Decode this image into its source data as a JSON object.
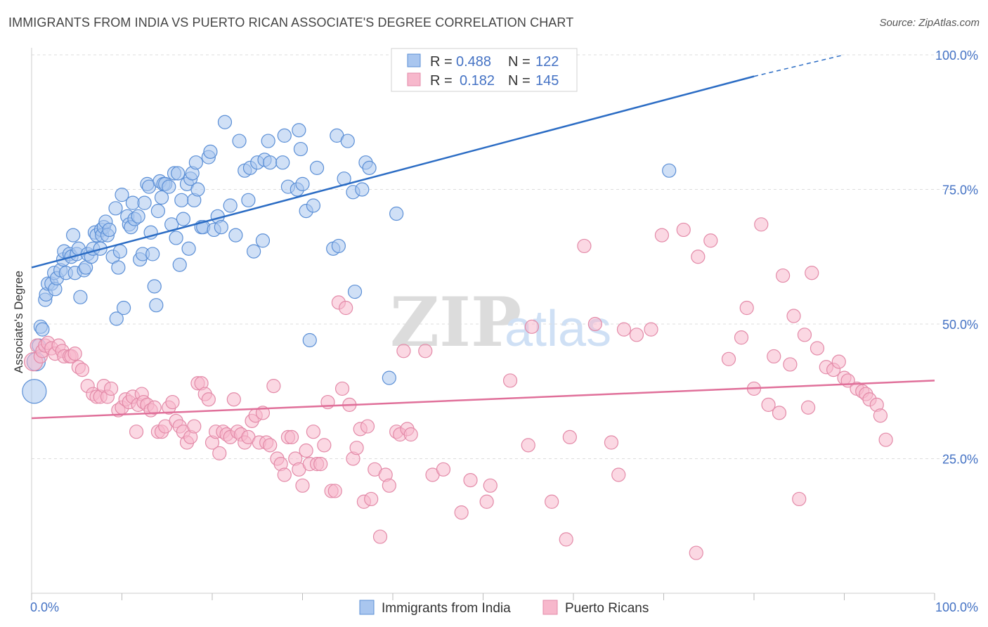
{
  "header": {
    "title": "IMMIGRANTS FROM INDIA VS PUERTO RICAN ASSOCIATE'S DEGREE CORRELATION CHART",
    "source": "Source: ZipAtlas.com"
  },
  "watermark": {
    "zip": "ZIP",
    "atlas": "atlas"
  },
  "colors": {
    "blue_fill": "#a9c6ef",
    "blue_stroke": "#5b8fd6",
    "blue_line": "#2b6cc4",
    "pink_fill": "#f7b8cc",
    "pink_stroke": "#e38aa8",
    "pink_line": "#e0709a",
    "grid": "#dddddd",
    "axis_text": "#4472c4"
  },
  "legend": {
    "rows": [
      {
        "r_label": "R =",
        "r_value": "0.488",
        "n_label": "N =",
        "n_value": "122"
      },
      {
        "r_label": "R =",
        "r_value": "0.182",
        "n_label": "N =",
        "n_value": "145"
      }
    ]
  },
  "bottom_legend": [
    "Immigrants from India",
    "Puerto Ricans"
  ],
  "chart_data": {
    "type": "scatter",
    "title": "IMMIGRANTS FROM INDIA VS PUERTO RICAN ASSOCIATE'S DEGREE CORRELATION CHART",
    "xlabel": "",
    "ylabel": "Associate's Degree",
    "xlim": [
      0,
      100
    ],
    "ylim": [
      0,
      100
    ],
    "x_tick_labels": [
      "0.0%",
      "100.0%"
    ],
    "y_ticks": [
      25,
      50,
      75,
      100
    ],
    "y_tick_labels": [
      "25.0%",
      "50.0%",
      "75.0%",
      "100.0%"
    ],
    "grid": true,
    "series": [
      {
        "name": "Immigrants from India",
        "R": 0.488,
        "N": 122,
        "trend": {
          "x": [
            0,
            80
          ],
          "y": [
            60.5,
            96
          ],
          "dashed_to": [
            90,
            100
          ]
        },
        "points": [
          [
            0.3,
            37.5
          ],
          [
            0.5,
            43
          ],
          [
            0.8,
            46
          ],
          [
            1.0,
            49.5
          ],
          [
            1.2,
            49
          ],
          [
            1.5,
            54.5
          ],
          [
            1.6,
            55.5
          ],
          [
            1.8,
            57.5
          ],
          [
            2.2,
            57.5
          ],
          [
            2.5,
            59.5
          ],
          [
            2.6,
            56.5
          ],
          [
            2.8,
            58.5
          ],
          [
            3.2,
            60
          ],
          [
            3.5,
            62
          ],
          [
            3.6,
            63.5
          ],
          [
            3.8,
            59.5
          ],
          [
            4.2,
            63
          ],
          [
            4.4,
            62.5
          ],
          [
            4.6,
            66.5
          ],
          [
            4.8,
            59.5
          ],
          [
            5.0,
            63
          ],
          [
            5.2,
            64
          ],
          [
            5.4,
            55
          ],
          [
            5.8,
            60
          ],
          [
            6.0,
            60.5
          ],
          [
            6.2,
            63
          ],
          [
            6.6,
            62.5
          ],
          [
            6.8,
            64
          ],
          [
            7.0,
            67
          ],
          [
            7.2,
            66.5
          ],
          [
            7.6,
            64
          ],
          [
            7.7,
            67.5
          ],
          [
            7.8,
            66.5
          ],
          [
            8.0,
            68
          ],
          [
            8.2,
            69
          ],
          [
            8.4,
            66.5
          ],
          [
            8.6,
            67.5
          ],
          [
            9.0,
            62.5
          ],
          [
            9.3,
            71.5
          ],
          [
            9.4,
            51
          ],
          [
            9.6,
            60.5
          ],
          [
            9.8,
            63.5
          ],
          [
            10.0,
            74
          ],
          [
            10.2,
            53
          ],
          [
            10.6,
            70
          ],
          [
            10.8,
            68.5
          ],
          [
            11.0,
            68
          ],
          [
            11.2,
            72.5
          ],
          [
            11.4,
            69.5
          ],
          [
            11.8,
            70
          ],
          [
            12.0,
            62
          ],
          [
            12.3,
            63
          ],
          [
            12.5,
            72.5
          ],
          [
            12.8,
            76
          ],
          [
            13.0,
            75.5
          ],
          [
            13.2,
            67
          ],
          [
            13.4,
            63
          ],
          [
            13.6,
            57
          ],
          [
            13.8,
            53.5
          ],
          [
            14.0,
            71
          ],
          [
            14.2,
            76.5
          ],
          [
            14.4,
            73.5
          ],
          [
            14.6,
            76
          ],
          [
            14.8,
            76
          ],
          [
            15.2,
            75.5
          ],
          [
            15.5,
            68.5
          ],
          [
            15.8,
            78
          ],
          [
            16.0,
            66
          ],
          [
            16.2,
            78
          ],
          [
            16.4,
            61
          ],
          [
            16.6,
            73
          ],
          [
            16.8,
            69.5
          ],
          [
            17.2,
            76
          ],
          [
            17.4,
            64
          ],
          [
            17.6,
            77
          ],
          [
            17.8,
            78
          ],
          [
            18.0,
            73
          ],
          [
            18.2,
            80
          ],
          [
            18.4,
            75
          ],
          [
            18.8,
            68
          ],
          [
            19.0,
            68
          ],
          [
            19.6,
            81
          ],
          [
            19.8,
            82
          ],
          [
            20.2,
            67.5
          ],
          [
            20.6,
            70
          ],
          [
            21.0,
            68
          ],
          [
            21.4,
            87.5
          ],
          [
            22.0,
            72
          ],
          [
            22.6,
            66.5
          ],
          [
            23.0,
            84
          ],
          [
            23.6,
            78.5
          ],
          [
            24.0,
            73
          ],
          [
            24.2,
            79
          ],
          [
            24.6,
            63.5
          ],
          [
            25.0,
            80
          ],
          [
            25.6,
            65.5
          ],
          [
            25.8,
            80.5
          ],
          [
            26.2,
            84
          ],
          [
            26.4,
            80
          ],
          [
            27.8,
            80
          ],
          [
            28.0,
            85
          ],
          [
            28.4,
            75.5
          ],
          [
            29.4,
            75
          ],
          [
            29.6,
            86
          ],
          [
            29.8,
            82.5
          ],
          [
            30.0,
            76
          ],
          [
            30.4,
            71
          ],
          [
            30.8,
            47
          ],
          [
            31.2,
            72
          ],
          [
            31.6,
            79
          ],
          [
            33.4,
            64
          ],
          [
            33.8,
            85
          ],
          [
            34.0,
            64.5
          ],
          [
            34.6,
            77
          ],
          [
            35.0,
            84
          ],
          [
            35.6,
            74.5
          ],
          [
            35.8,
            56
          ],
          [
            36.6,
            75
          ],
          [
            37.0,
            80
          ],
          [
            37.4,
            79
          ],
          [
            39.6,
            40
          ],
          [
            40.4,
            70.5
          ],
          [
            70.6,
            78.5
          ]
        ]
      },
      {
        "name": "Puerto Ricans",
        "R": 0.182,
        "N": 145,
        "trend": {
          "x": [
            0,
            100
          ],
          "y": [
            32.5,
            39.5
          ]
        },
        "points": [
          [
            0.2,
            43
          ],
          [
            0.6,
            46
          ],
          [
            1.0,
            44
          ],
          [
            1.2,
            45
          ],
          [
            1.5,
            46
          ],
          [
            1.8,
            46.5
          ],
          [
            2.2,
            45.5
          ],
          [
            2.6,
            44.5
          ],
          [
            3.0,
            46
          ],
          [
            3.4,
            45
          ],
          [
            3.6,
            44
          ],
          [
            4.2,
            44
          ],
          [
            4.4,
            44
          ],
          [
            4.8,
            44.5
          ],
          [
            5.2,
            42
          ],
          [
            5.6,
            41.5
          ],
          [
            6.2,
            38.5
          ],
          [
            6.8,
            37
          ],
          [
            7.2,
            36.5
          ],
          [
            7.6,
            36.5
          ],
          [
            8.0,
            38.5
          ],
          [
            8.4,
            36.5
          ],
          [
            8.8,
            38
          ],
          [
            9.6,
            34
          ],
          [
            10.0,
            34.5
          ],
          [
            10.4,
            36
          ],
          [
            10.8,
            35.5
          ],
          [
            11.2,
            36.5
          ],
          [
            11.6,
            30
          ],
          [
            11.8,
            35
          ],
          [
            12.2,
            37
          ],
          [
            12.4,
            35.5
          ],
          [
            12.8,
            35
          ],
          [
            13.2,
            34
          ],
          [
            13.6,
            34.5
          ],
          [
            14.0,
            30
          ],
          [
            14.4,
            30
          ],
          [
            14.8,
            31
          ],
          [
            15.2,
            34.5
          ],
          [
            15.6,
            35.5
          ],
          [
            16.0,
            32
          ],
          [
            16.4,
            31
          ],
          [
            16.8,
            30
          ],
          [
            17.2,
            28
          ],
          [
            17.6,
            29
          ],
          [
            18.0,
            31
          ],
          [
            18.4,
            39
          ],
          [
            18.8,
            39
          ],
          [
            19.2,
            37
          ],
          [
            19.6,
            36
          ],
          [
            20.0,
            28
          ],
          [
            20.4,
            30
          ],
          [
            20.8,
            26
          ],
          [
            21.2,
            30
          ],
          [
            21.6,
            29.5
          ],
          [
            22.0,
            29
          ],
          [
            22.4,
            36
          ],
          [
            22.8,
            30
          ],
          [
            23.2,
            29.5
          ],
          [
            23.6,
            28
          ],
          [
            24.0,
            29
          ],
          [
            24.4,
            32
          ],
          [
            24.8,
            33
          ],
          [
            25.2,
            28
          ],
          [
            25.6,
            33.5
          ],
          [
            26.0,
            28
          ],
          [
            26.4,
            27.5
          ],
          [
            26.8,
            38.5
          ],
          [
            27.2,
            25
          ],
          [
            27.6,
            24
          ],
          [
            28.0,
            22
          ],
          [
            28.4,
            29
          ],
          [
            28.8,
            29
          ],
          [
            29.2,
            25
          ],
          [
            29.6,
            23
          ],
          [
            30.0,
            20
          ],
          [
            30.4,
            26.5
          ],
          [
            30.8,
            24
          ],
          [
            31.2,
            30
          ],
          [
            31.6,
            24
          ],
          [
            32.0,
            24
          ],
          [
            32.4,
            27.5
          ],
          [
            32.8,
            35.5
          ],
          [
            33.2,
            19
          ],
          [
            33.6,
            19
          ],
          [
            34.0,
            54
          ],
          [
            34.4,
            38
          ],
          [
            34.8,
            53
          ],
          [
            35.2,
            35
          ],
          [
            35.6,
            25
          ],
          [
            36.0,
            27
          ],
          [
            36.4,
            30.5
          ],
          [
            36.8,
            17
          ],
          [
            37.2,
            31
          ],
          [
            37.6,
            17.5
          ],
          [
            38.0,
            23
          ],
          [
            38.6,
            10.5
          ],
          [
            39.2,
            22
          ],
          [
            39.6,
            20
          ],
          [
            40.4,
            30
          ],
          [
            40.8,
            29.5
          ],
          [
            41.2,
            45
          ],
          [
            41.6,
            30.5
          ],
          [
            42.0,
            29.5
          ],
          [
            43.6,
            45
          ],
          [
            44.4,
            22
          ],
          [
            45.6,
            23
          ],
          [
            47.6,
            15
          ],
          [
            48.6,
            21
          ],
          [
            50.4,
            17
          ],
          [
            50.8,
            20
          ],
          [
            53.0,
            39.5
          ],
          [
            55.0,
            27.5
          ],
          [
            55.4,
            49.5
          ],
          [
            57.6,
            17
          ],
          [
            59.2,
            10
          ],
          [
            59.6,
            29
          ],
          [
            61.2,
            64.5
          ],
          [
            62.4,
            50
          ],
          [
            64.2,
            28
          ],
          [
            65.0,
            22
          ],
          [
            65.6,
            49
          ],
          [
            67.0,
            48
          ],
          [
            68.6,
            49
          ],
          [
            69.8,
            66.5
          ],
          [
            72.2,
            67.5
          ],
          [
            73.6,
            7.5
          ],
          [
            73.8,
            62.5
          ],
          [
            75.2,
            65.5
          ],
          [
            77.2,
            43.5
          ],
          [
            78.6,
            47.5
          ],
          [
            79.2,
            53
          ],
          [
            80.0,
            38
          ],
          [
            80.8,
            68.5
          ],
          [
            81.6,
            35
          ],
          [
            82.2,
            44
          ],
          [
            82.8,
            33.5
          ],
          [
            83.2,
            59
          ],
          [
            84.0,
            42.5
          ],
          [
            84.4,
            51.5
          ],
          [
            85.0,
            17.5
          ],
          [
            85.6,
            48
          ],
          [
            86.0,
            34.5
          ],
          [
            86.4,
            59.5
          ],
          [
            87.0,
            45.5
          ],
          [
            88.0,
            42
          ],
          [
            88.8,
            41.5
          ],
          [
            89.4,
            43
          ],
          [
            90.0,
            40
          ],
          [
            90.4,
            39.5
          ],
          [
            91.4,
            38
          ],
          [
            92.0,
            37.5
          ],
          [
            92.4,
            37
          ],
          [
            92.8,
            36
          ],
          [
            93.6,
            35
          ],
          [
            94.0,
            33
          ],
          [
            94.6,
            28.5
          ]
        ]
      }
    ]
  }
}
